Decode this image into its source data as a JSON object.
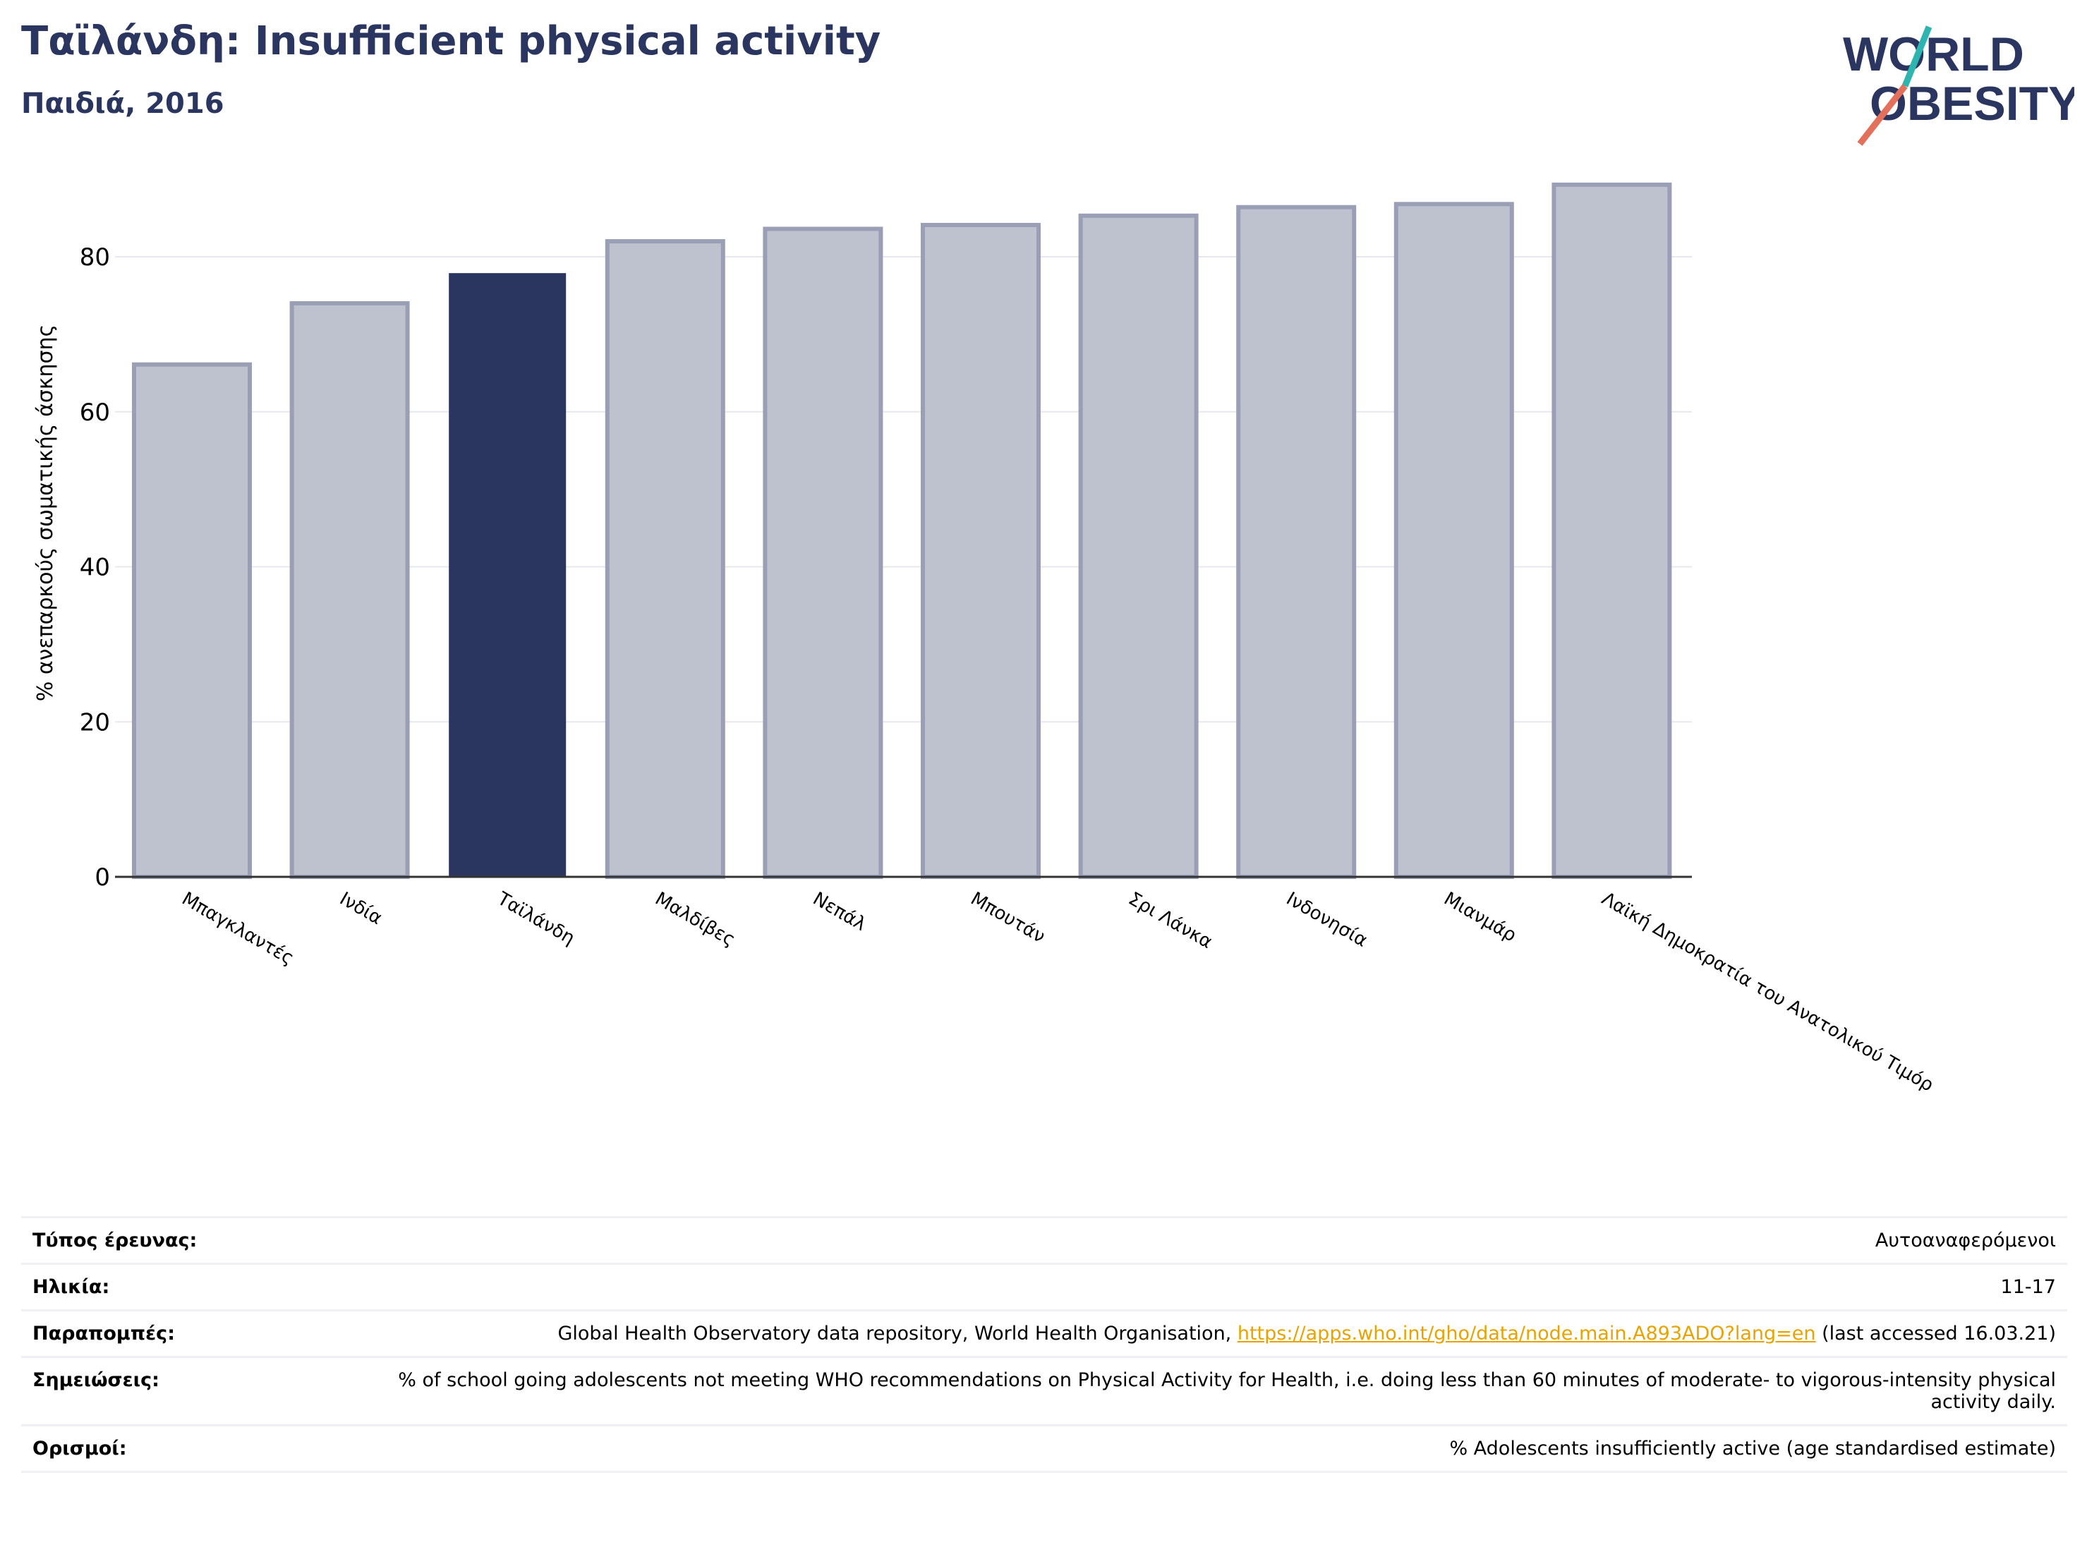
{
  "header": {
    "title": "Ταϊλάνδη: Insufficient physical activity",
    "subtitle": "Παιδιά, 2016"
  },
  "logo": {
    "line1": "WORLD",
    "line2": "OBESITY"
  },
  "colors": {
    "highlight": "#2a3560",
    "bar": "#bec1ce",
    "bar_edge": "#9a9fb6",
    "slash_red": "#e2705b",
    "slash_teal": "#2fb5b0"
  },
  "chart_data": {
    "type": "bar",
    "categories": [
      "Μπαγκλαντές",
      "Ινδία",
      "Ταϊλάνδη",
      "Μαλδίβες",
      "Νεπάλ",
      "Μπουτάν",
      "Σρι Λάνκα",
      "Ινδονησία",
      "Μιανμάρ",
      "Λαϊκή Δημοκρατία του Ανατολικού Τιμόρ"
    ],
    "values": [
      66.1,
      74.0,
      77.8,
      82.0,
      83.6,
      84.1,
      85.3,
      86.4,
      86.8,
      89.3
    ],
    "highlight": "Ταϊλάνδη",
    "ylabel": "% ανεπαρκούς σωματικής άσκησης",
    "yticks": [
      0,
      20,
      40,
      60,
      80
    ],
    "ylim": [
      0,
      92
    ],
    "grid": true
  },
  "meta": [
    {
      "label": "Τύπος έρευνας:",
      "value": "Αυτοαναφερόμενοι"
    },
    {
      "label": "Ηλικία:",
      "value": "11-17"
    },
    {
      "label": "Παραπομπές:",
      "value_pre": "Global Health Observatory data repository, World Health Organisation, ",
      "link": "https://apps.who.int/gho/data/node.main.A893ADO?lang=en",
      "value_post": " (last accessed 16.03.21)"
    },
    {
      "label": "Σημειώσεις:",
      "value": "% of school going adolescents not meeting WHO recommendations on Physical Activity for Health, i.e. doing less than 60 minutes of moderate- to vigorous-intensity physical activity daily."
    },
    {
      "label": "Ορισμοί:",
      "value": "% Adolescents insufficiently active (age standardised estimate)"
    }
  ]
}
